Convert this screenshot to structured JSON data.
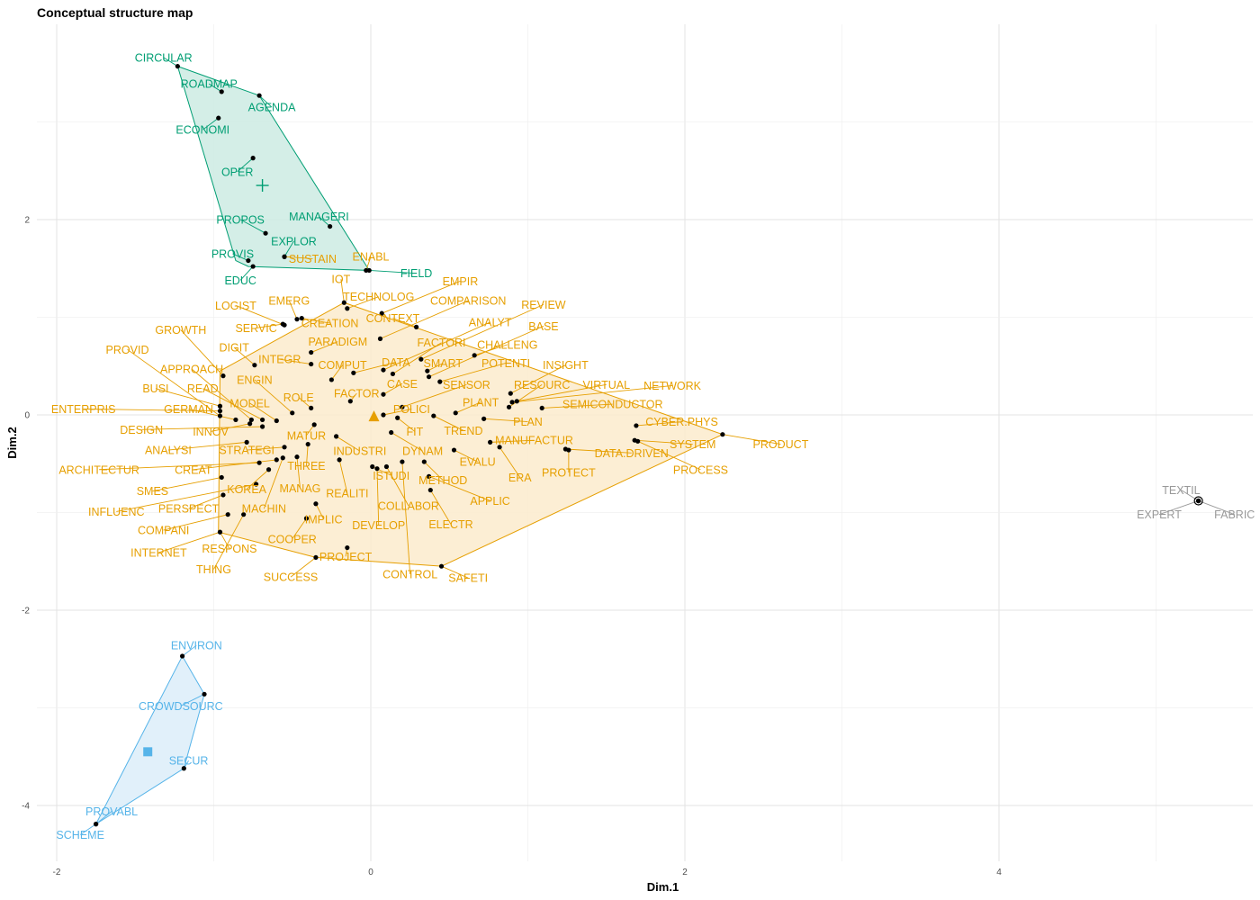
{
  "chart_data": {
    "type": "scatter",
    "title": "Conceptual structure map",
    "xlabel": "Dim.1",
    "ylabel": "Dim.2",
    "xlim": [
      -2.05,
      5.6
    ],
    "ylim": [
      -4.5,
      3.9
    ],
    "x_ticks": [
      -2,
      0,
      2,
      4
    ],
    "y_ticks": [
      -4,
      -2,
      0,
      2
    ],
    "grid": true,
    "legend": "none",
    "clusters": [
      {
        "color": "#009E73",
        "fill": "#cdebe3",
        "centroid_marker": "plus",
        "centroid": [
          -0.69,
          2.35
        ],
        "hull": [
          [
            -1.23,
            3.57
          ],
          [
            -0.71,
            3.27
          ],
          [
            -0.01,
            1.48
          ],
          [
            -0.78,
            1.52
          ],
          [
            -0.86,
            1.58
          ]
        ],
        "points": [
          {
            "label": "CIRCULAR",
            "x": -1.23,
            "y": 3.57,
            "lx": -1.32,
            "ly": 3.66
          },
          {
            "label": "ROADMAP",
            "x": -0.95,
            "y": 3.31,
            "lx": -1.03,
            "ly": 3.39
          },
          {
            "label": "AGENDA",
            "x": -0.71,
            "y": 3.27,
            "lx": -0.63,
            "ly": 3.15
          },
          {
            "label": "ECONOMI",
            "x": -0.97,
            "y": 3.04,
            "lx": -1.07,
            "ly": 2.92
          },
          {
            "label": "OPER",
            "x": -0.75,
            "y": 2.63,
            "lx": -0.85,
            "ly": 2.49
          },
          {
            "label": "MANAGERI",
            "x": -0.26,
            "y": 1.93,
            "lx": -0.33,
            "ly": 2.03
          },
          {
            "label": "PROPOS",
            "x": -0.67,
            "y": 1.86,
            "lx": -0.83,
            "ly": 2.0
          },
          {
            "label": "EXPLOR",
            "x": -0.55,
            "y": 1.62,
            "lx": -0.49,
            "ly": 1.78
          },
          {
            "label": "PROVIS",
            "x": -0.78,
            "y": 1.58,
            "lx": -0.88,
            "ly": 1.65
          },
          {
            "label": "EDUC",
            "x": -0.75,
            "y": 1.52,
            "lx": -0.83,
            "ly": 1.38
          },
          {
            "label": "FIELD",
            "x": -0.01,
            "y": 1.48,
            "lx": 0.29,
            "ly": 1.45
          }
        ]
      },
      {
        "color": "#E69F00",
        "fill": "#fcebcc",
        "centroid_marker": "triangle",
        "centroid": [
          0.02,
          -0.02
        ],
        "hull": [
          [
            -0.17,
            1.15
          ],
          [
            2.24,
            -0.2
          ],
          [
            0.45,
            -1.55
          ],
          [
            -0.35,
            -1.46
          ],
          [
            -0.97,
            -1.2
          ],
          [
            -0.96,
            0.45
          ]
        ],
        "points": [
          {
            "label": "ENABL",
            "x": -0.03,
            "y": 1.48,
            "lx": 0.0,
            "ly": 1.62
          },
          {
            "label": "SUSTAIN",
            "x": -0.55,
            "y": 1.62,
            "lx": -0.37,
            "ly": 1.6
          },
          {
            "label": "IOT",
            "x": -0.17,
            "y": 1.15,
            "lx": -0.19,
            "ly": 1.39
          },
          {
            "label": "EMPIR",
            "x": 0.07,
            "y": 1.04,
            "lx": 0.57,
            "ly": 1.37
          },
          {
            "label": "TECHNOLOG",
            "x": -0.15,
            "y": 1.09,
            "lx": 0.05,
            "ly": 1.21
          },
          {
            "label": "LOGIST",
            "x": -0.55,
            "y": 0.92,
            "lx": -0.86,
            "ly": 1.12
          },
          {
            "label": "EMERG",
            "x": -0.47,
            "y": 0.98,
            "lx": -0.52,
            "ly": 1.17
          },
          {
            "label": "COMPARISON",
            "x": 0.06,
            "y": 0.78,
            "lx": 0.62,
            "ly": 1.17
          },
          {
            "label": "REVIEW",
            "x": 0.32,
            "y": 0.57,
            "lx": 1.1,
            "ly": 1.13
          },
          {
            "label": "CONTEXT",
            "x": 0.29,
            "y": 0.9,
            "lx": 0.14,
            "ly": 0.99
          },
          {
            "label": "SERVIC",
            "x": -0.56,
            "y": 0.93,
            "lx": -0.73,
            "ly": 0.89
          },
          {
            "label": "CREATION",
            "x": -0.44,
            "y": 0.99,
            "lx": -0.26,
            "ly": 0.94
          },
          {
            "label": "ANALYT",
            "x": 0.08,
            "y": 0.46,
            "lx": 0.76,
            "ly": 0.95
          },
          {
            "label": "BASE",
            "x": 0.37,
            "y": 0.39,
            "lx": 1.1,
            "ly": 0.91
          },
          {
            "label": "GROWTH",
            "x": -0.94,
            "y": 0.4,
            "lx": -1.21,
            "ly": 0.87
          },
          {
            "label": "PARADIGM",
            "x": -0.38,
            "y": 0.64,
            "lx": -0.21,
            "ly": 0.75
          },
          {
            "label": "FACTORI",
            "x": 0.14,
            "y": 0.42,
            "lx": 0.45,
            "ly": 0.74
          },
          {
            "label": "CHALLENG",
            "x": 0.66,
            "y": 0.61,
            "lx": 0.87,
            "ly": 0.72
          },
          {
            "label": "DIGIT",
            "x": -0.74,
            "y": 0.51,
            "lx": -0.87,
            "ly": 0.69
          },
          {
            "label": "PROVID",
            "x": -0.96,
            "y": -0.01,
            "lx": -1.55,
            "ly": 0.67
          },
          {
            "label": "INTEGR",
            "x": -0.38,
            "y": 0.52,
            "lx": -0.58,
            "ly": 0.57
          },
          {
            "label": "DATA",
            "x": -0.11,
            "y": 0.43,
            "lx": 0.16,
            "ly": 0.54
          },
          {
            "label": "SMART",
            "x": 0.36,
            "y": 0.45,
            "lx": 0.46,
            "ly": 0.53
          },
          {
            "label": "POTENTI",
            "x": 0.44,
            "y": 0.34,
            "lx": 0.86,
            "ly": 0.53
          },
          {
            "label": "INSIGHT",
            "x": 0.89,
            "y": 0.22,
            "lx": 1.24,
            "ly": 0.51
          },
          {
            "label": "APPROACH",
            "x": -0.76,
            "y": -0.05,
            "lx": -1.14,
            "ly": 0.47
          },
          {
            "label": "COMPUT",
            "x": -0.25,
            "y": 0.36,
            "lx": -0.18,
            "ly": 0.51
          },
          {
            "label": "CASE",
            "x": 0.08,
            "y": 0.21,
            "lx": 0.2,
            "ly": 0.32
          },
          {
            "label": "VIRTUAL",
            "x": 0.93,
            "y": 0.14,
            "lx": 1.5,
            "ly": 0.31
          },
          {
            "label": "NETWORK",
            "x": 0.9,
            "y": 0.13,
            "lx": 1.92,
            "ly": 0.3
          },
          {
            "label": "READ",
            "x": -0.69,
            "y": -0.05,
            "lx": -1.07,
            "ly": 0.27
          },
          {
            "label": "BUSI",
            "x": -0.96,
            "y": 0.09,
            "lx": -1.37,
            "ly": 0.27
          },
          {
            "label": "SENSOR",
            "x": 0.2,
            "y": 0.08,
            "lx": 0.61,
            "ly": 0.31
          },
          {
            "label": "RESOURC",
            "x": 0.88,
            "y": 0.08,
            "lx": 1.09,
            "ly": 0.31
          },
          {
            "label": "FACTOR",
            "x": -0.13,
            "y": 0.14,
            "lx": -0.09,
            "ly": 0.22
          },
          {
            "label": "ENGIN",
            "x": -0.5,
            "y": 0.02,
            "lx": -0.74,
            "ly": 0.36
          },
          {
            "label": "ROLE",
            "x": -0.38,
            "y": 0.07,
            "lx": -0.46,
            "ly": 0.18
          },
          {
            "label": "MODEL",
            "x": -0.6,
            "y": -0.06,
            "lx": -0.77,
            "ly": 0.12
          },
          {
            "label": "PLANT",
            "x": 0.54,
            "y": 0.02,
            "lx": 0.7,
            "ly": 0.13
          },
          {
            "label": "SEMICONDUCTOR",
            "x": 1.09,
            "y": 0.07,
            "lx": 1.54,
            "ly": 0.11
          },
          {
            "label": "ENTERPRIS",
            "x": -0.96,
            "y": 0.04,
            "lx": -1.83,
            "ly": 0.06
          },
          {
            "label": "GERMAN",
            "x": -0.86,
            "y": -0.05,
            "lx": -1.16,
            "ly": 0.06
          },
          {
            "label": "POLICI",
            "x": 0.08,
            "y": 0.0,
            "lx": 0.26,
            "ly": 0.06
          },
          {
            "label": "DESIGN",
            "x": -0.69,
            "y": -0.12,
            "lx": -1.46,
            "ly": -0.15
          },
          {
            "label": "INNOV",
            "x": -0.77,
            "y": -0.09,
            "lx": -1.02,
            "ly": -0.17
          },
          {
            "label": "PLAN",
            "x": 0.72,
            "y": -0.04,
            "lx": 1.0,
            "ly": -0.07
          },
          {
            "label": "CYBER.PHYS",
            "x": 1.69,
            "y": -0.11,
            "lx": 1.98,
            "ly": -0.07
          },
          {
            "label": "TREND",
            "x": 0.4,
            "y": -0.01,
            "lx": 0.59,
            "ly": -0.16
          },
          {
            "label": "FIT",
            "x": 0.17,
            "y": -0.03,
            "lx": 0.28,
            "ly": -0.17
          },
          {
            "label": "MATUR",
            "x": -0.36,
            "y": -0.1,
            "lx": -0.41,
            "ly": -0.21
          },
          {
            "label": "ANALYSI",
            "x": -0.79,
            "y": -0.28,
            "lx": -1.29,
            "ly": -0.36
          },
          {
            "label": "STRATEGI",
            "x": -0.55,
            "y": -0.33,
            "lx": -0.79,
            "ly": -0.36
          },
          {
            "label": "MANUFACTUR",
            "x": 0.76,
            "y": -0.28,
            "lx": 1.04,
            "ly": -0.26
          },
          {
            "label": "SYSTEM",
            "x": 1.68,
            "y": -0.26,
            "lx": 2.05,
            "ly": -0.3
          },
          {
            "label": "PRODUCT",
            "x": 2.24,
            "y": -0.2,
            "lx": 2.61,
            "ly": -0.3
          },
          {
            "label": "INDUSTRI",
            "x": -0.22,
            "y": -0.22,
            "lx": -0.07,
            "ly": -0.37
          },
          {
            "label": "DYNAM",
            "x": 0.13,
            "y": -0.18,
            "lx": 0.33,
            "ly": -0.37
          },
          {
            "label": "DATA.DRIVEN",
            "x": 1.24,
            "y": -0.35,
            "lx": 1.66,
            "ly": -0.39
          },
          {
            "label": "EVALU",
            "x": 0.53,
            "y": -0.36,
            "lx": 0.68,
            "ly": -0.48
          },
          {
            "label": "THREE",
            "x": -0.4,
            "y": -0.3,
            "lx": -0.41,
            "ly": -0.52
          },
          {
            "label": "ARCHITECTUR",
            "x": -0.71,
            "y": -0.49,
            "lx": -1.73,
            "ly": -0.56
          },
          {
            "label": "CREAT",
            "x": -0.6,
            "y": -0.46,
            "lx": -1.13,
            "ly": -0.56
          },
          {
            "label": "PROCESS",
            "x": 1.7,
            "y": -0.27,
            "lx": 2.1,
            "ly": -0.56
          },
          {
            "label": "PROTECT",
            "x": 1.26,
            "y": -0.36,
            "lx": 1.26,
            "ly": -0.59
          },
          {
            "label": "ISTUDI",
            "x": 0.01,
            "y": -0.53,
            "lx": 0.13,
            "ly": -0.62
          },
          {
            "label": "ERA",
            "x": 0.82,
            "y": -0.33,
            "lx": 0.95,
            "ly": -0.64
          },
          {
            "label": "METHOD",
            "x": 0.34,
            "y": -0.48,
            "lx": 0.46,
            "ly": -0.67
          },
          {
            "label": "MANAG",
            "x": -0.47,
            "y": -0.43,
            "lx": -0.45,
            "ly": -0.75
          },
          {
            "label": "SMES",
            "x": -0.95,
            "y": -0.64,
            "lx": -1.39,
            "ly": -0.78
          },
          {
            "label": "KOREA",
            "x": -0.65,
            "y": -0.56,
            "lx": -0.79,
            "ly": -0.76
          },
          {
            "label": "REALITI",
            "x": -0.2,
            "y": -0.46,
            "lx": -0.15,
            "ly": -0.8
          },
          {
            "label": "APPLIC",
            "x": 0.37,
            "y": -0.63,
            "lx": 0.76,
            "ly": -0.88
          },
          {
            "label": "COLLABOR",
            "x": 0.1,
            "y": -0.53,
            "lx": 0.24,
            "ly": -0.93
          },
          {
            "label": "PERSPECT",
            "x": -0.94,
            "y": -0.82,
            "lx": -1.16,
            "ly": -0.96
          },
          {
            "label": "INFLUENC",
            "x": -0.73,
            "y": -0.71,
            "lx": -1.62,
            "ly": -0.99
          },
          {
            "label": "MACHIN",
            "x": -0.56,
            "y": -0.44,
            "lx": -0.68,
            "ly": -0.96
          },
          {
            "label": "IMPLIC",
            "x": -0.35,
            "y": -0.91,
            "lx": -0.3,
            "ly": -1.07
          },
          {
            "label": "ELECTR",
            "x": 0.38,
            "y": -0.77,
            "lx": 0.51,
            "ly": -1.12
          },
          {
            "label": "DEVELOP",
            "x": 0.04,
            "y": -0.55,
            "lx": 0.05,
            "ly": -1.13
          },
          {
            "label": "COMPANI",
            "x": -0.91,
            "y": -1.02,
            "lx": -1.32,
            "ly": -1.18
          },
          {
            "label": "RESPONS",
            "x": -0.96,
            "y": -1.2,
            "lx": -0.9,
            "ly": -1.37
          },
          {
            "label": "COOPER",
            "x": -0.41,
            "y": -1.06,
            "lx": -0.5,
            "ly": -1.27
          },
          {
            "label": "INTERNET",
            "x": -0.96,
            "y": -1.2,
            "lx": -1.35,
            "ly": -1.41
          },
          {
            "label": "PROJECT",
            "x": -0.15,
            "y": -1.36,
            "lx": -0.16,
            "ly": -1.45
          },
          {
            "label": "THING",
            "x": -0.81,
            "y": -1.02,
            "lx": -1.0,
            "ly": -1.58
          },
          {
            "label": "SUCCESS",
            "x": -0.35,
            "y": -1.46,
            "lx": -0.51,
            "ly": -1.66
          },
          {
            "label": "CONTROL",
            "x": 0.2,
            "y": -0.48,
            "lx": 0.25,
            "ly": -1.63
          },
          {
            "label": "SAFETI",
            "x": 0.45,
            "y": -1.55,
            "lx": 0.62,
            "ly": -1.67
          }
        ]
      },
      {
        "color": "#56B4E9",
        "fill": "#dcedf9",
        "centroid_marker": "square",
        "centroid": [
          -1.42,
          -3.45
        ],
        "hull": [
          [
            -1.2,
            -2.47
          ],
          [
            -1.06,
            -2.86
          ],
          [
            -1.19,
            -3.62
          ],
          [
            -1.75,
            -4.19
          ]
        ],
        "points": [
          {
            "label": "ENVIRON",
            "x": -1.2,
            "y": -2.47,
            "lx": -1.11,
            "ly": -2.36
          },
          {
            "label": "CROWDSOURC",
            "x": -1.06,
            "y": -2.86,
            "lx": -1.21,
            "ly": -2.98
          },
          {
            "label": "SECUR",
            "x": -1.19,
            "y": -3.62,
            "lx": -1.16,
            "ly": -3.54
          },
          {
            "label": "PROVABL",
            "x": -1.75,
            "y": -4.19,
            "lx": -1.65,
            "ly": -4.06
          },
          {
            "label": "SCHEME",
            "x": -1.75,
            "y": -4.19,
            "lx": -1.85,
            "ly": -4.3
          }
        ]
      },
      {
        "color": "#999999",
        "fill": "none",
        "centroid_marker": "circle",
        "centroid": [
          5.27,
          -0.88
        ],
        "hull": [],
        "points": [
          {
            "label": "TEXTIL",
            "x": 5.27,
            "y": -0.88,
            "lx": 5.16,
            "ly": -0.77
          },
          {
            "label": "EXPERT",
            "x": 5.27,
            "y": -0.88,
            "lx": 5.02,
            "ly": -1.02
          },
          {
            "label": "FABRIC",
            "x": 5.27,
            "y": -0.88,
            "lx": 5.5,
            "ly": -1.02
          }
        ]
      }
    ]
  }
}
